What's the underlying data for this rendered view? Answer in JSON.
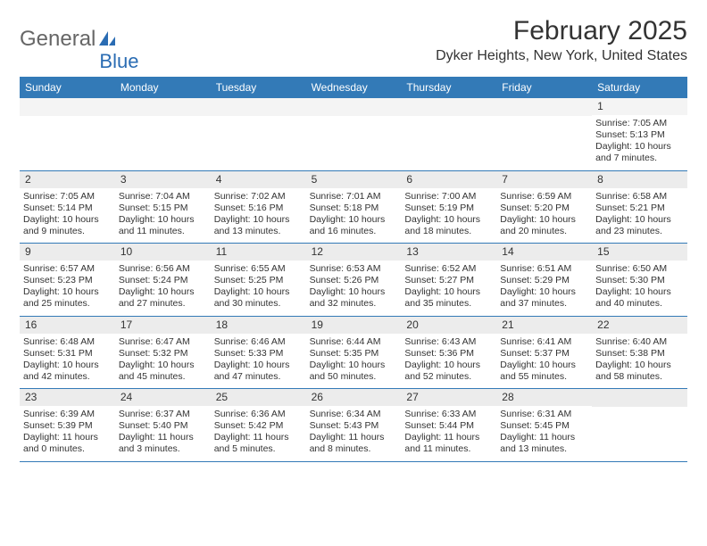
{
  "logo": {
    "text1": "General",
    "text2": "Blue",
    "color_gray": "#666666",
    "color_blue": "#2a6cb3"
  },
  "title": "February 2025",
  "location": "Dyker Heights, New York, United States",
  "colors": {
    "header_bg": "#337ab7",
    "header_text": "#ffffff",
    "daynum_bg": "#ececec",
    "border": "#337ab7",
    "text": "#333333",
    "background": "#ffffff"
  },
  "day_names": [
    "Sunday",
    "Monday",
    "Tuesday",
    "Wednesday",
    "Thursday",
    "Friday",
    "Saturday"
  ],
  "weeks": [
    [
      {
        "n": "",
        "sr": "",
        "ss": "",
        "dl": ""
      },
      {
        "n": "",
        "sr": "",
        "ss": "",
        "dl": ""
      },
      {
        "n": "",
        "sr": "",
        "ss": "",
        "dl": ""
      },
      {
        "n": "",
        "sr": "",
        "ss": "",
        "dl": ""
      },
      {
        "n": "",
        "sr": "",
        "ss": "",
        "dl": ""
      },
      {
        "n": "",
        "sr": "",
        "ss": "",
        "dl": ""
      },
      {
        "n": "1",
        "sr": "Sunrise: 7:05 AM",
        "ss": "Sunset: 5:13 PM",
        "dl": "Daylight: 10 hours and 7 minutes."
      }
    ],
    [
      {
        "n": "2",
        "sr": "Sunrise: 7:05 AM",
        "ss": "Sunset: 5:14 PM",
        "dl": "Daylight: 10 hours and 9 minutes."
      },
      {
        "n": "3",
        "sr": "Sunrise: 7:04 AM",
        "ss": "Sunset: 5:15 PM",
        "dl": "Daylight: 10 hours and 11 minutes."
      },
      {
        "n": "4",
        "sr": "Sunrise: 7:02 AM",
        "ss": "Sunset: 5:16 PM",
        "dl": "Daylight: 10 hours and 13 minutes."
      },
      {
        "n": "5",
        "sr": "Sunrise: 7:01 AM",
        "ss": "Sunset: 5:18 PM",
        "dl": "Daylight: 10 hours and 16 minutes."
      },
      {
        "n": "6",
        "sr": "Sunrise: 7:00 AM",
        "ss": "Sunset: 5:19 PM",
        "dl": "Daylight: 10 hours and 18 minutes."
      },
      {
        "n": "7",
        "sr": "Sunrise: 6:59 AM",
        "ss": "Sunset: 5:20 PM",
        "dl": "Daylight: 10 hours and 20 minutes."
      },
      {
        "n": "8",
        "sr": "Sunrise: 6:58 AM",
        "ss": "Sunset: 5:21 PM",
        "dl": "Daylight: 10 hours and 23 minutes."
      }
    ],
    [
      {
        "n": "9",
        "sr": "Sunrise: 6:57 AM",
        "ss": "Sunset: 5:23 PM",
        "dl": "Daylight: 10 hours and 25 minutes."
      },
      {
        "n": "10",
        "sr": "Sunrise: 6:56 AM",
        "ss": "Sunset: 5:24 PM",
        "dl": "Daylight: 10 hours and 27 minutes."
      },
      {
        "n": "11",
        "sr": "Sunrise: 6:55 AM",
        "ss": "Sunset: 5:25 PM",
        "dl": "Daylight: 10 hours and 30 minutes."
      },
      {
        "n": "12",
        "sr": "Sunrise: 6:53 AM",
        "ss": "Sunset: 5:26 PM",
        "dl": "Daylight: 10 hours and 32 minutes."
      },
      {
        "n": "13",
        "sr": "Sunrise: 6:52 AM",
        "ss": "Sunset: 5:27 PM",
        "dl": "Daylight: 10 hours and 35 minutes."
      },
      {
        "n": "14",
        "sr": "Sunrise: 6:51 AM",
        "ss": "Sunset: 5:29 PM",
        "dl": "Daylight: 10 hours and 37 minutes."
      },
      {
        "n": "15",
        "sr": "Sunrise: 6:50 AM",
        "ss": "Sunset: 5:30 PM",
        "dl": "Daylight: 10 hours and 40 minutes."
      }
    ],
    [
      {
        "n": "16",
        "sr": "Sunrise: 6:48 AM",
        "ss": "Sunset: 5:31 PM",
        "dl": "Daylight: 10 hours and 42 minutes."
      },
      {
        "n": "17",
        "sr": "Sunrise: 6:47 AM",
        "ss": "Sunset: 5:32 PM",
        "dl": "Daylight: 10 hours and 45 minutes."
      },
      {
        "n": "18",
        "sr": "Sunrise: 6:46 AM",
        "ss": "Sunset: 5:33 PM",
        "dl": "Daylight: 10 hours and 47 minutes."
      },
      {
        "n": "19",
        "sr": "Sunrise: 6:44 AM",
        "ss": "Sunset: 5:35 PM",
        "dl": "Daylight: 10 hours and 50 minutes."
      },
      {
        "n": "20",
        "sr": "Sunrise: 6:43 AM",
        "ss": "Sunset: 5:36 PM",
        "dl": "Daylight: 10 hours and 52 minutes."
      },
      {
        "n": "21",
        "sr": "Sunrise: 6:41 AM",
        "ss": "Sunset: 5:37 PM",
        "dl": "Daylight: 10 hours and 55 minutes."
      },
      {
        "n": "22",
        "sr": "Sunrise: 6:40 AM",
        "ss": "Sunset: 5:38 PM",
        "dl": "Daylight: 10 hours and 58 minutes."
      }
    ],
    [
      {
        "n": "23",
        "sr": "Sunrise: 6:39 AM",
        "ss": "Sunset: 5:39 PM",
        "dl": "Daylight: 11 hours and 0 minutes."
      },
      {
        "n": "24",
        "sr": "Sunrise: 6:37 AM",
        "ss": "Sunset: 5:40 PM",
        "dl": "Daylight: 11 hours and 3 minutes."
      },
      {
        "n": "25",
        "sr": "Sunrise: 6:36 AM",
        "ss": "Sunset: 5:42 PM",
        "dl": "Daylight: 11 hours and 5 minutes."
      },
      {
        "n": "26",
        "sr": "Sunrise: 6:34 AM",
        "ss": "Sunset: 5:43 PM",
        "dl": "Daylight: 11 hours and 8 minutes."
      },
      {
        "n": "27",
        "sr": "Sunrise: 6:33 AM",
        "ss": "Sunset: 5:44 PM",
        "dl": "Daylight: 11 hours and 11 minutes."
      },
      {
        "n": "28",
        "sr": "Sunrise: 6:31 AM",
        "ss": "Sunset: 5:45 PM",
        "dl": "Daylight: 11 hours and 13 minutes."
      },
      {
        "n": "",
        "sr": "",
        "ss": "",
        "dl": ""
      }
    ]
  ]
}
